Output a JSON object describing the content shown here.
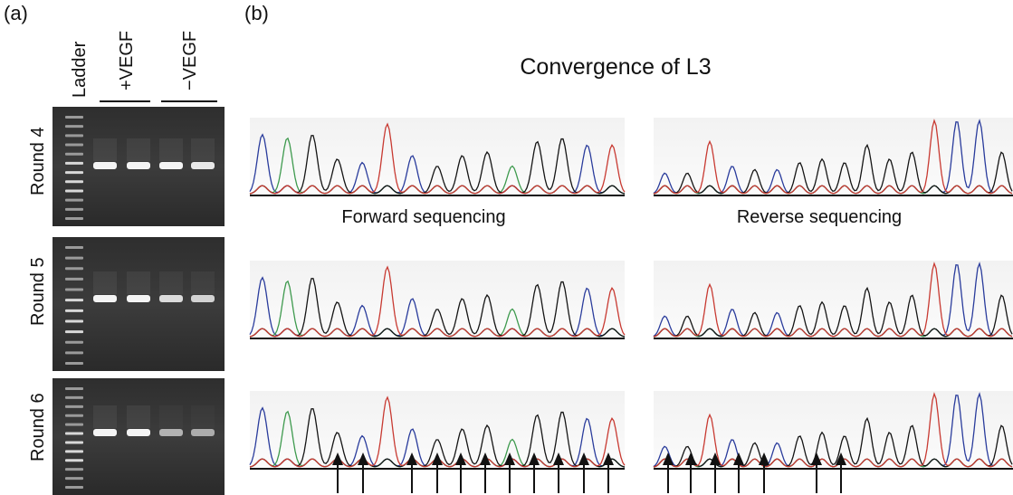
{
  "panel_labels": [
    "(a)",
    "(b)"
  ],
  "gel": {
    "lanes": {
      "ladder": "Ladder",
      "plus": "+VEGF",
      "minus": "−VEGF"
    },
    "rounds": [
      "Round 4",
      "Round 5",
      "Round 6"
    ]
  },
  "sequencing": {
    "title": "Convergence of L3",
    "forward": "Forward sequencing",
    "reverse": "Reverse sequencing"
  }
}
